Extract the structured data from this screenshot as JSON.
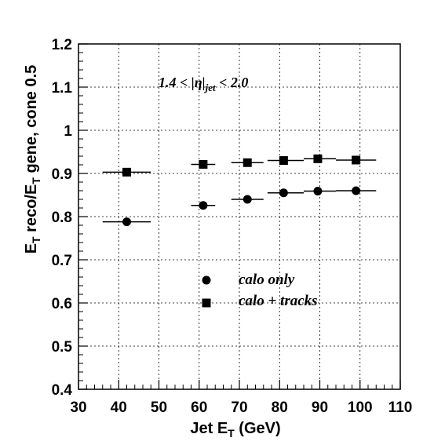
{
  "chart_data": {
    "type": "scatter",
    "xlabel": {
      "main": "Jet E",
      "sub": "T",
      "unit": " (GeV)"
    },
    "ylabel": {
      "p1": "E",
      "s1": "T",
      "p2": " reco/E",
      "s2": "T",
      "p3": " gene, cone 0.5"
    },
    "xlim": [
      30,
      110
    ],
    "ylim": [
      0.4,
      1.2
    ],
    "x_ticks": [
      30,
      40,
      50,
      60,
      70,
      80,
      90,
      100,
      110
    ],
    "x_tick_labels": [
      "30",
      "40",
      "50",
      "60",
      "70",
      "80",
      "90",
      "100",
      "110"
    ],
    "y_ticks": [
      0.4,
      0.5,
      0.6,
      0.7,
      0.8,
      0.9,
      1.0,
      1.1,
      1.2
    ],
    "y_tick_labels": [
      "0.4",
      "0.5",
      "0.6",
      "0.7",
      "0.8",
      "0.9",
      "1",
      "1.1",
      "1.2"
    ],
    "grid": true,
    "annotation": {
      "pre": "1.4 < |η|",
      "sub": "jet",
      "post": " < 2.0"
    },
    "legend_position": "center",
    "series": [
      {
        "name": "calo only",
        "marker": "circle",
        "points": [
          {
            "x": 42,
            "xerr": [
              36,
              48
            ],
            "y": 0.788
          },
          {
            "x": 61,
            "xerr": [
              58,
              64
            ],
            "y": 0.826
          },
          {
            "x": 72,
            "xerr": [
              68,
              76
            ],
            "y": 0.84
          },
          {
            "x": 81,
            "xerr": [
              77,
              86
            ],
            "y": 0.855
          },
          {
            "x": 89.5,
            "xerr": [
              86,
              94
            ],
            "y": 0.859
          },
          {
            "x": 99,
            "xerr": [
              94,
              104
            ],
            "y": 0.86
          }
        ]
      },
      {
        "name": "calo + tracks",
        "marker": "square",
        "points": [
          {
            "x": 42,
            "xerr": [
              36,
              48
            ],
            "y": 0.903
          },
          {
            "x": 61,
            "xerr": [
              58,
              64
            ],
            "y": 0.921
          },
          {
            "x": 72,
            "xerr": [
              68,
              76
            ],
            "y": 0.925
          },
          {
            "x": 81,
            "xerr": [
              77,
              86
            ],
            "y": 0.93
          },
          {
            "x": 89.5,
            "xerr": [
              86,
              94
            ],
            "y": 0.934
          },
          {
            "x": 99,
            "xerr": [
              94,
              104
            ],
            "y": 0.931
          }
        ]
      }
    ]
  }
}
